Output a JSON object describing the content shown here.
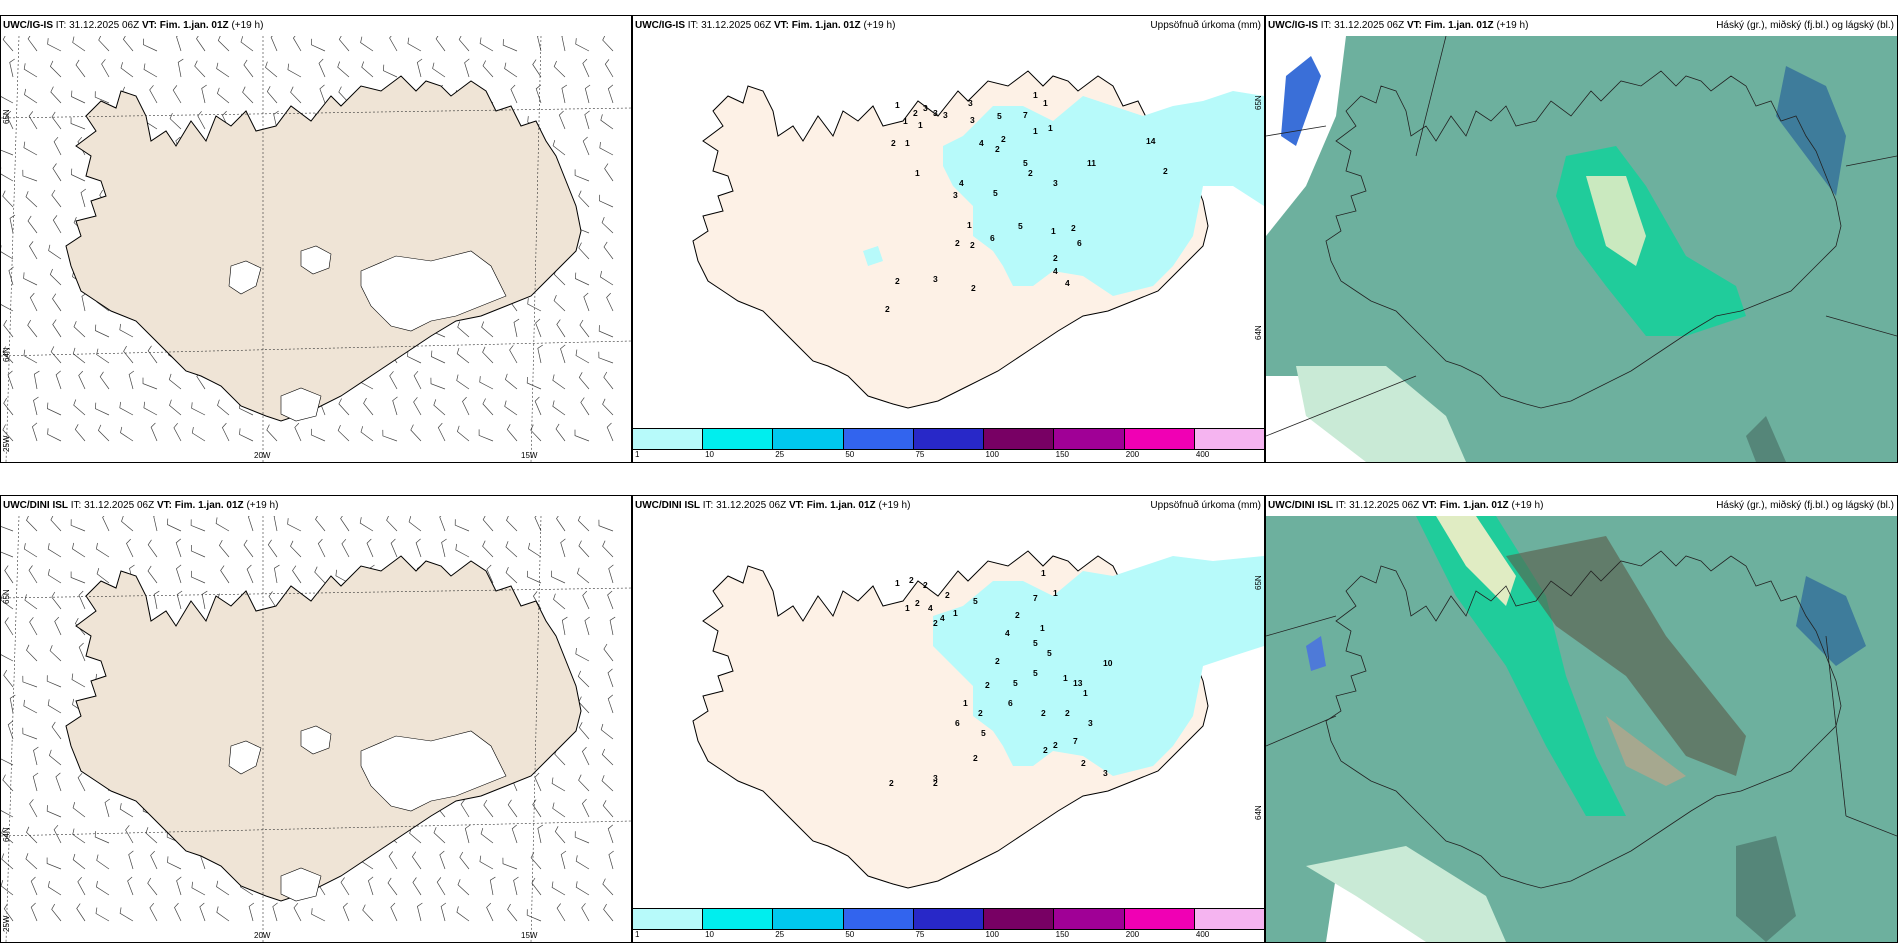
{
  "rows": [
    {
      "model": "UWC/IG-IS",
      "it_label": "IT:",
      "it": "31.12.2025 06Z",
      "vt_label": "VT:",
      "vt": "Fim. 1.jan. 01Z",
      "lead": "(+19 h)",
      "wind_axes": {
        "lon": [
          "25W",
          "20W",
          "15W"
        ],
        "lat": [
          "65N",
          "64N"
        ]
      },
      "precip_axes": {
        "lat": [
          "65N",
          "64N"
        ]
      },
      "precip_numbers": [
        "1",
        "1",
        "2",
        "2",
        "1",
        "1",
        "3",
        "3",
        "3",
        "3",
        "3",
        "4",
        "5",
        "7",
        "1",
        "1",
        "1",
        "1",
        "2",
        "2",
        "1",
        "4",
        "5",
        "3",
        "1",
        "5",
        "2",
        "11",
        "14",
        "2",
        "6",
        "5",
        "3",
        "1",
        "2",
        "2",
        "6",
        "4",
        "4",
        "3",
        "2",
        "2",
        "2",
        "2",
        "2"
      ]
    },
    {
      "model": "UWC/DINI ISL",
      "it_label": "IT:",
      "it": "31.12.2025 06Z",
      "vt_label": "VT:",
      "vt": "Fim. 1.jan. 01Z",
      "lead": "(+19 h)",
      "wind_axes": {
        "lon": [
          "25W",
          "20W",
          "15W"
        ],
        "lat": [
          "65N",
          "64N"
        ]
      },
      "precip_axes": {
        "lat": [
          "65N",
          "64N"
        ]
      },
      "precip_numbers": [
        "1",
        "2",
        "2",
        "2",
        "4",
        "4",
        "2",
        "5",
        "1",
        "7",
        "1",
        "1",
        "1",
        "2",
        "4",
        "5",
        "5",
        "5",
        "2",
        "5",
        "2",
        "6",
        "13",
        "10",
        "2",
        "2",
        "2",
        "2",
        "5",
        "6",
        "1",
        "2",
        "2",
        "3",
        "1",
        "7",
        "3",
        "2",
        "2",
        "3",
        "1",
        "2",
        "2",
        "1"
      ]
    }
  ],
  "precip_title": "Uppsöfnuð úrkoma (mm)",
  "cloud_title": "Háský (gr.), miðský (fj.bl.) og lágský (bl.)",
  "colorbar": {
    "labels": [
      "1",
      "10",
      "25",
      "50",
      "75",
      "100",
      "150",
      "200",
      "400",
      ""
    ],
    "colors": [
      "#b7fafa",
      "#00eeee",
      "#00c8ee",
      "#3264ee",
      "#2828c8",
      "#780064",
      "#a00096",
      "#f000b4",
      "#f5b4f0"
    ]
  },
  "colors": {
    "land": "#efe4d6",
    "land_precip": "#fdf1e6",
    "precip_light": "#b7fafa",
    "cloud_base": "#6db09e"
  }
}
